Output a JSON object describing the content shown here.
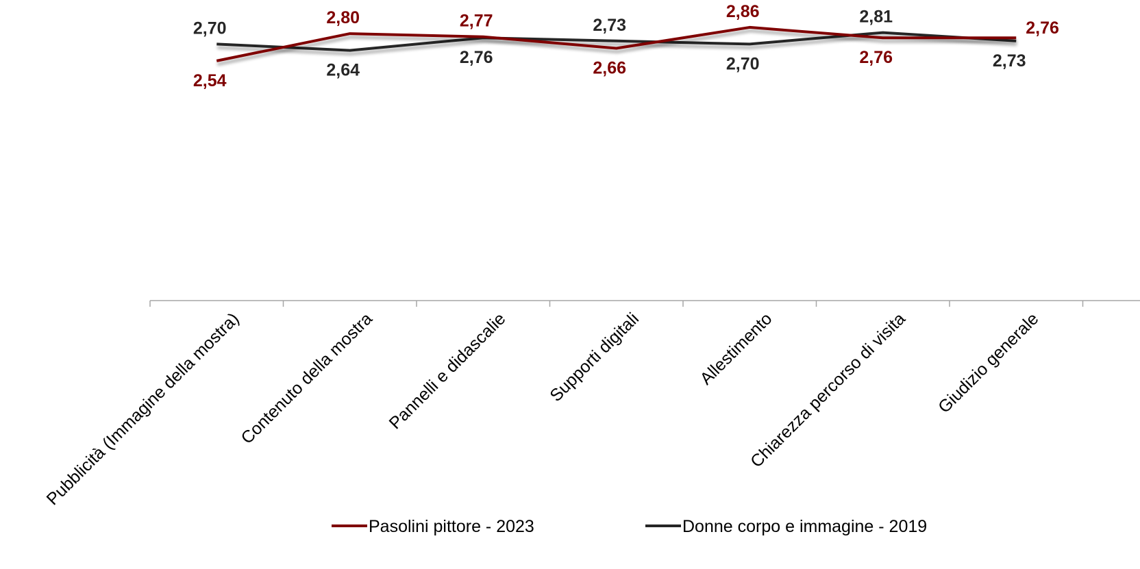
{
  "chart_data": {
    "type": "line",
    "categories": [
      "Pubblicità (Immagine della mostra)",
      "Contenuto della mostra",
      "Pannelli e didascalie",
      "Supporti digitali",
      "Allestimento",
      "Chiarezza percorso di visita",
      "Giudizio generale"
    ],
    "series": [
      {
        "name": "Pasolini pittore - 2023",
        "color": "#7f0000",
        "values": [
          2.54,
          2.8,
          2.77,
          2.66,
          2.86,
          2.76,
          2.76
        ],
        "labels": [
          "2,54",
          "2,80",
          "2,77",
          "2,66",
          "2,86",
          "2,76",
          "2,76"
        ],
        "label_positions": [
          "below",
          "above",
          "above",
          "below",
          "above",
          "below",
          "right"
        ]
      },
      {
        "name": "Donne corpo e immagine - 2019",
        "color": "#262626",
        "values": [
          2.7,
          2.64,
          2.76,
          2.73,
          2.7,
          2.81,
          2.73
        ],
        "labels": [
          "2,70",
          "2,64",
          "2,76",
          "2,73",
          "2,70",
          "2,81",
          "2,73"
        ],
        "label_positions": [
          "above",
          "below",
          "below",
          "above",
          "below",
          "above",
          "below"
        ]
      }
    ],
    "legend_position": "bottom",
    "grid": false,
    "line_shadow": true
  }
}
